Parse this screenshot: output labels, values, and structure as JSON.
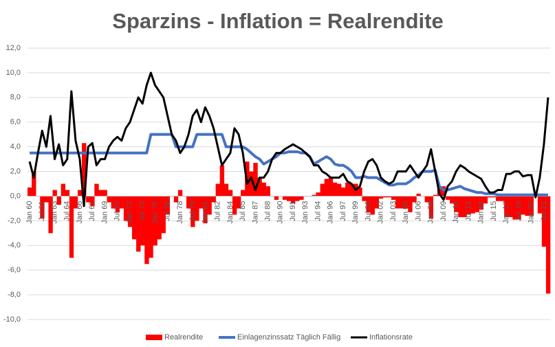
{
  "chart_data": {
    "type": "combo",
    "title": "Sparzins - Inflation = Realrendite",
    "categories": [
      "Jan 60",
      null,
      null,
      "Jul 61",
      null,
      null,
      "Jan 63",
      null,
      null,
      "Jul 64",
      null,
      null,
      "Jan 66",
      null,
      null,
      "Jul 67",
      null,
      null,
      "Jan 69",
      null,
      null,
      "Jul 70",
      null,
      null,
      "Jan 72",
      null,
      null,
      "Jul 73",
      null,
      null,
      "Jan 75",
      null,
      null,
      "Jul 76",
      null,
      null,
      "Jan 78",
      null,
      null,
      "Jul 79",
      null,
      null,
      "Jan 81",
      null,
      null,
      "Jul 82",
      null,
      null,
      "Jan 84",
      null,
      null,
      "Jul 85",
      null,
      null,
      "Jan 87",
      null,
      null,
      "Jul 88",
      null,
      null,
      "Jan 90",
      null,
      null,
      "Jul 91",
      null,
      null,
      "Jan 93",
      null,
      null,
      "Jul 94",
      null,
      null,
      "Jan 96",
      null,
      null,
      "Jul 97",
      null,
      null,
      "Jan 99",
      null,
      null,
      "Jul 00",
      null,
      null,
      "Jan 02",
      null,
      null,
      "Jul 03",
      null,
      null,
      "Jan 05",
      null,
      null,
      "Jul 06",
      null,
      null,
      "Jan 08",
      null,
      null,
      "Jul 09",
      null,
      null,
      "Jan 11",
      null,
      null,
      "Jul 12",
      null,
      null,
      "Jan 14",
      null,
      null,
      "Jul 15",
      null,
      null,
      "Jan 17",
      null,
      null,
      "Jul 18",
      null,
      null,
      "Jan 20",
      null,
      null,
      "Jul 21",
      null
    ],
    "series": [
      {
        "name": "Realrendite",
        "type": "bar",
        "color": "#ff0000",
        "values": [
          0.7,
          2.0,
          0.0,
          -1.8,
          -0.5,
          -3.0,
          0.5,
          -0.7,
          1.0,
          0.5,
          -5.0,
          -1.0,
          0.5,
          4.3,
          -0.5,
          -0.8,
          1.0,
          0.5,
          0.5,
          -0.5,
          -1.0,
          -1.3,
          -1.0,
          -2.0,
          -2.5,
          -3.5,
          -4.5,
          -4.0,
          -5.5,
          -5.0,
          -4.0,
          -3.5,
          -3.0,
          -1.5,
          0.0,
          -0.5,
          0.5,
          0.0,
          -1.0,
          -2.5,
          -2.0,
          -1.0,
          -2.2,
          -1.5,
          -0.5,
          1.0,
          2.5,
          1.0,
          0.5,
          -1.5,
          -1.0,
          0.5,
          2.8,
          2.0,
          2.7,
          1.5,
          1.1,
          0.8,
          0.0,
          -0.3,
          0.0,
          -0.3,
          -0.4,
          -0.6,
          -0.4,
          -0.3,
          0.0,
          0.0,
          0.1,
          0.3,
          1.0,
          1.4,
          1.5,
          1.1,
          1.0,
          0.7,
          1.1,
          1.0,
          1.0,
          0.7,
          -0.4,
          -1.3,
          -1.5,
          -1.0,
          -0.2,
          -0.1,
          -0.1,
          -0.3,
          -1.0,
          -1.0,
          -1.0,
          -1.3,
          -0.5,
          0.2,
          0.0,
          -0.5,
          -1.8,
          0.1,
          0.6,
          0.8,
          -0.3,
          -0.6,
          -1.3,
          -1.7,
          -1.7,
          -1.5,
          -1.4,
          -1.3,
          -1.1,
          -0.6,
          -0.1,
          -0.1,
          -0.4,
          -0.4,
          -1.7,
          -1.7,
          -1.9,
          -1.9,
          -1.5,
          -1.6,
          -1.6,
          0.2,
          -1.4,
          -4.1,
          -7.9
        ]
      },
      {
        "name": "Einlagenzinssatz Täglich Fällig",
        "type": "line",
        "color": "#4472c4",
        "values": [
          3.5,
          3.5,
          3.5,
          3.5,
          3.5,
          3.5,
          3.5,
          3.5,
          3.5,
          3.5,
          3.5,
          3.5,
          3.5,
          3.5,
          3.5,
          3.5,
          3.5,
          3.5,
          3.5,
          3.5,
          3.5,
          3.5,
          3.5,
          3.5,
          3.5,
          3.5,
          3.5,
          3.5,
          3.5,
          5.0,
          5.0,
          5.0,
          5.0,
          5.0,
          5.0,
          4.0,
          4.0,
          4.0,
          4.0,
          4.0,
          5.0,
          5.0,
          5.0,
          5.0,
          5.0,
          5.0,
          5.0,
          4.0,
          4.0,
          4.0,
          4.0,
          4.0,
          3.8,
          3.5,
          3.2,
          3.0,
          2.6,
          2.8,
          3.0,
          3.2,
          3.5,
          3.5,
          3.6,
          3.6,
          3.6,
          3.5,
          3.5,
          3.2,
          2.6,
          2.8,
          3.0,
          3.2,
          3.0,
          2.6,
          2.5,
          2.5,
          2.3,
          2.0,
          1.5,
          1.5,
          1.6,
          1.5,
          1.5,
          1.5,
          1.3,
          1.1,
          0.9,
          0.9,
          1.0,
          1.0,
          1.0,
          1.2,
          1.5,
          1.7,
          2.0,
          2.0,
          2.0,
          2.1,
          0.8,
          0.5,
          0.5,
          0.6,
          0.7,
          0.8,
          0.6,
          0.5,
          0.4,
          0.3,
          0.3,
          0.2,
          0.2,
          0.2,
          0.1,
          0.1,
          0.1,
          0.1,
          0.1,
          0.1,
          0.1,
          0.1,
          0.1,
          0.1,
          0.1,
          0.1,
          0.1
        ]
      },
      {
        "name": "Inflationsrate",
        "type": "line",
        "color": "#000000",
        "values": [
          2.8,
          1.5,
          3.5,
          5.3,
          4.0,
          6.5,
          3.0,
          4.2,
          2.5,
          3.0,
          8.5,
          4.5,
          3.0,
          -0.8,
          4.0,
          4.3,
          2.5,
          3.0,
          3.0,
          4.0,
          4.5,
          4.8,
          4.5,
          5.5,
          6.0,
          7.0,
          8.0,
          7.5,
          9.0,
          10.0,
          9.0,
          8.5,
          8.0,
          6.5,
          5.0,
          4.5,
          3.5,
          4.0,
          5.0,
          6.5,
          7.0,
          6.0,
          7.2,
          6.5,
          5.5,
          4.0,
          2.5,
          3.0,
          3.5,
          5.5,
          5.0,
          3.5,
          1.0,
          1.5,
          0.5,
          1.5,
          1.5,
          2.0,
          3.0,
          3.5,
          3.5,
          3.8,
          4.0,
          4.2,
          4.0,
          3.8,
          3.5,
          3.2,
          2.5,
          2.5,
          2.0,
          1.8,
          1.5,
          1.5,
          1.5,
          1.8,
          1.2,
          1.0,
          0.5,
          0.8,
          2.0,
          2.8,
          3.0,
          2.5,
          1.5,
          1.2,
          1.0,
          1.2,
          2.0,
          2.0,
          2.0,
          2.5,
          2.0,
          1.5,
          2.0,
          2.5,
          3.8,
          2.0,
          0.2,
          -0.3,
          0.8,
          1.2,
          2.0,
          2.5,
          2.3,
          2.0,
          1.8,
          1.6,
          1.4,
          0.8,
          0.3,
          0.3,
          0.5,
          0.5,
          1.8,
          1.8,
          2.0,
          2.0,
          1.6,
          1.7,
          1.7,
          -0.1,
          1.5,
          4.2,
          8.0
        ]
      }
    ],
    "ylim": [
      -10,
      12
    ],
    "yticks": [
      {
        "value": -10,
        "label": "-10,0"
      },
      {
        "value": -8,
        "label": "-8,0"
      },
      {
        "value": -6,
        "label": "-6,0"
      },
      {
        "value": -4,
        "label": "-4,0"
      },
      {
        "value": -2,
        "label": "-2,0"
      },
      {
        "value": 0,
        "label": "0,0"
      },
      {
        "value": 2,
        "label": "2,0"
      },
      {
        "value": 4,
        "label": "4,0"
      },
      {
        "value": 6,
        "label": "6,0"
      },
      {
        "value": 8,
        "label": "8,0"
      },
      {
        "value": 10,
        "label": "10,0"
      },
      {
        "value": 12,
        "label": "12,0"
      }
    ],
    "grid": true,
    "legend": "bottom"
  }
}
